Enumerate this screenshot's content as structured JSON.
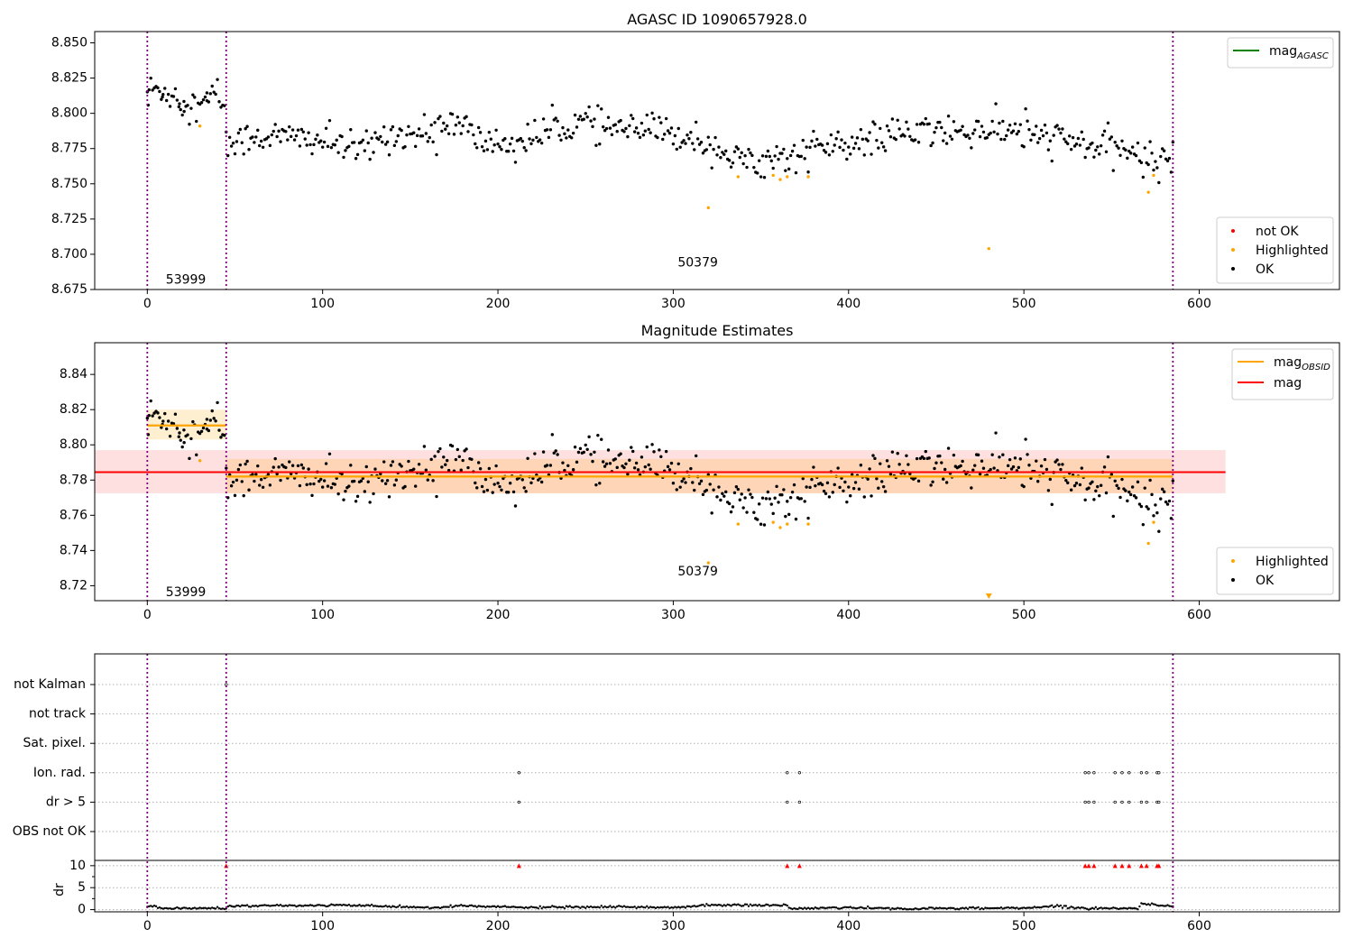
{
  "chart_data": [
    {
      "type": "scatter",
      "title": "AGASC ID 1090657928.0",
      "xlim": [
        -30,
        680
      ],
      "ylim": [
        8.675,
        8.858
      ],
      "x_ticks": [
        0,
        100,
        200,
        300,
        400,
        500,
        600
      ],
      "y_ticks": [
        8.675,
        8.7,
        8.725,
        8.75,
        8.775,
        8.8,
        8.825,
        8.85
      ],
      "y_tick_labels": [
        "8.675",
        "8.700",
        "8.725",
        "8.750",
        "8.775",
        "8.800",
        "8.825",
        "8.850"
      ],
      "obsid_boundaries": [
        0,
        45,
        585
      ],
      "obsid_labels": [
        {
          "text": "53999",
          "x": 22,
          "y": 8.6825
        },
        {
          "text": "50379",
          "x": 314,
          "y": 8.6945
        }
      ],
      "highlighted_points": [
        [
          30,
          8.791
        ],
        [
          320,
          8.733
        ],
        [
          337,
          8.755
        ],
        [
          357,
          8.756
        ],
        [
          361,
          8.753
        ],
        [
          365,
          8.755
        ],
        [
          377,
          8.755
        ],
        [
          480,
          8.704
        ],
        [
          571,
          8.744
        ],
        [
          574,
          8.756
        ]
      ],
      "ok_trend": [
        [
          0,
          8.817
        ],
        [
          10,
          8.816
        ],
        [
          20,
          8.81
        ],
        [
          30,
          8.804
        ],
        [
          40,
          8.815
        ],
        [
          44,
          8.804
        ],
        [
          46,
          8.776
        ],
        [
          60,
          8.784
        ],
        [
          80,
          8.783
        ],
        [
          100,
          8.781
        ],
        [
          120,
          8.773
        ],
        [
          140,
          8.786
        ],
        [
          160,
          8.784
        ],
        [
          175,
          8.795
        ],
        [
          190,
          8.78
        ],
        [
          210,
          8.778
        ],
        [
          230,
          8.788
        ],
        [
          250,
          8.794
        ],
        [
          270,
          8.788
        ],
        [
          290,
          8.788
        ],
        [
          310,
          8.783
        ],
        [
          325,
          8.777
        ],
        [
          335,
          8.766
        ],
        [
          355,
          8.768
        ],
        [
          370,
          8.77
        ],
        [
          385,
          8.778
        ],
        [
          400,
          8.775
        ],
        [
          420,
          8.784
        ],
        [
          440,
          8.786
        ],
        [
          460,
          8.787
        ],
        [
          480,
          8.788
        ],
        [
          500,
          8.786
        ],
        [
          520,
          8.782
        ],
        [
          540,
          8.776
        ],
        [
          560,
          8.774
        ],
        [
          575,
          8.764
        ],
        [
          585,
          8.772
        ]
      ],
      "ok_scatter": 0.0078,
      "legend_top": {
        "entries": [
          {
            "label": "mag",
            "sub": "AGASC",
            "color": "#008000"
          }
        ],
        "placement": "top-right"
      },
      "legend_bottom": {
        "entries": [
          {
            "label": "not OK",
            "color": "#ff0000"
          },
          {
            "label": "Highlighted",
            "color": "#ffa500"
          },
          {
            "label": "OK",
            "color": "#000000"
          }
        ],
        "placement": "bottom-right"
      }
    },
    {
      "type": "scatter",
      "title": "Magnitude Estimates",
      "xlim": [
        -30,
        680
      ],
      "ylim": [
        8.7115,
        8.858
      ],
      "x_ticks": [
        0,
        100,
        200,
        300,
        400,
        500,
        600
      ],
      "y_ticks": [
        8.72,
        8.74,
        8.76,
        8.78,
        8.8,
        8.82,
        8.84
      ],
      "y_tick_labels": [
        "8.72",
        "8.74",
        "8.76",
        "8.78",
        "8.80",
        "8.82",
        "8.84"
      ],
      "obsid_boundaries": [
        0,
        45,
        585
      ],
      "obsid_labels": [
        {
          "text": "53999",
          "x": 22,
          "y": 8.7165
        },
        {
          "text": "50379",
          "x": 314,
          "y": 8.7285
        }
      ],
      "mag_line": {
        "value": 8.7845,
        "band": [
          8.7725,
          8.797
        ],
        "x": [
          -30,
          615
        ],
        "color": "#ff0000"
      },
      "obsid_mags": [
        {
          "x": [
            0,
            45
          ],
          "value": 8.811,
          "band": [
            8.803,
            8.82
          ]
        },
        {
          "x": [
            45,
            585
          ],
          "value": 8.782,
          "band": [
            8.7725,
            8.792
          ]
        }
      ],
      "highlighted_points": [
        [
          30,
          8.791
        ],
        [
          320,
          8.733
        ],
        [
          337,
          8.755
        ],
        [
          357,
          8.756
        ],
        [
          361,
          8.753
        ],
        [
          365,
          8.755
        ],
        [
          377,
          8.755
        ],
        [
          571,
          8.744
        ],
        [
          574,
          8.756
        ]
      ],
      "off_scale_points": [
        [
          480,
          8.704
        ]
      ],
      "ok_trend": [
        [
          0,
          8.817
        ],
        [
          10,
          8.816
        ],
        [
          20,
          8.81
        ],
        [
          30,
          8.804
        ],
        [
          40,
          8.815
        ],
        [
          44,
          8.804
        ],
        [
          46,
          8.776
        ],
        [
          60,
          8.784
        ],
        [
          80,
          8.783
        ],
        [
          100,
          8.781
        ],
        [
          120,
          8.773
        ],
        [
          140,
          8.786
        ],
        [
          160,
          8.784
        ],
        [
          175,
          8.795
        ],
        [
          190,
          8.78
        ],
        [
          210,
          8.778
        ],
        [
          230,
          8.788
        ],
        [
          250,
          8.794
        ],
        [
          270,
          8.788
        ],
        [
          290,
          8.788
        ],
        [
          310,
          8.783
        ],
        [
          325,
          8.777
        ],
        [
          335,
          8.766
        ],
        [
          355,
          8.768
        ],
        [
          370,
          8.77
        ],
        [
          385,
          8.778
        ],
        [
          400,
          8.775
        ],
        [
          420,
          8.784
        ],
        [
          440,
          8.786
        ],
        [
          460,
          8.787
        ],
        [
          480,
          8.788
        ],
        [
          500,
          8.786
        ],
        [
          520,
          8.782
        ],
        [
          540,
          8.776
        ],
        [
          560,
          8.774
        ],
        [
          575,
          8.764
        ],
        [
          585,
          8.772
        ]
      ],
      "ok_scatter": 0.0078,
      "legend_top": {
        "entries": [
          {
            "label": "mag",
            "sub": "OBSID",
            "color": "#ffa500"
          },
          {
            "label": "mag",
            "sub": "",
            "color": "#ff0000"
          }
        ],
        "placement": "top-right"
      },
      "legend_bottom": {
        "entries": [
          {
            "label": "Highlighted",
            "color": "#ffa500"
          },
          {
            "label": "OK",
            "color": "#000000"
          }
        ],
        "placement": "bottom-right"
      }
    },
    {
      "type": "scatter",
      "title": "",
      "xlim": [
        -30,
        680
      ],
      "x_ticks": [
        0,
        100,
        200,
        300,
        400,
        500,
        600
      ],
      "obsid_boundaries": [
        0,
        45,
        585
      ],
      "flag_categories": [
        "not Kalman",
        "not track",
        "Sat. pixel.",
        "Ion. rad.",
        "dr > 5",
        "OBS not OK"
      ],
      "flags": {
        "not Kalman": [
          45
        ],
        "not track": [],
        "Sat. pixel.": [],
        "Ion. rad.": [
          212,
          365,
          372,
          535,
          537,
          540,
          552,
          556,
          560,
          567,
          570,
          576,
          577
        ],
        "dr > 5": [
          212,
          365,
          372,
          535,
          537,
          540,
          552,
          556,
          560,
          567,
          570,
          576,
          577
        ],
        "OBS not OK": []
      },
      "dr": {
        "ylabel": "dr",
        "ylim": [
          -0.5,
          11.2
        ],
        "y_ticks": [
          0,
          5,
          10
        ],
        "capped_at": 10,
        "capped_x": [
          45,
          212,
          365,
          372,
          535,
          537,
          540,
          552,
          556,
          560,
          567,
          570,
          576,
          577
        ],
        "trend": [
          [
            0,
            0.8
          ],
          [
            5,
            0.7
          ],
          [
            10,
            0.3
          ],
          [
            45,
            0.3
          ],
          [
            46,
            0.8
          ],
          [
            80,
            0.9
          ],
          [
            110,
            1.0
          ],
          [
            140,
            0.7
          ],
          [
            165,
            0.4
          ],
          [
            180,
            0.9
          ],
          [
            210,
            0.5
          ],
          [
            260,
            0.6
          ],
          [
            300,
            0.5
          ],
          [
            320,
            1.0
          ],
          [
            365,
            1.0
          ],
          [
            367,
            0.2
          ],
          [
            400,
            0.5
          ],
          [
            430,
            0.2
          ],
          [
            470,
            0.3
          ],
          [
            500,
            0.4
          ],
          [
            520,
            0.8
          ],
          [
            535,
            0.3
          ],
          [
            565,
            0.3
          ],
          [
            567,
            1.3
          ],
          [
            585,
            0.8
          ]
        ]
      }
    }
  ]
}
